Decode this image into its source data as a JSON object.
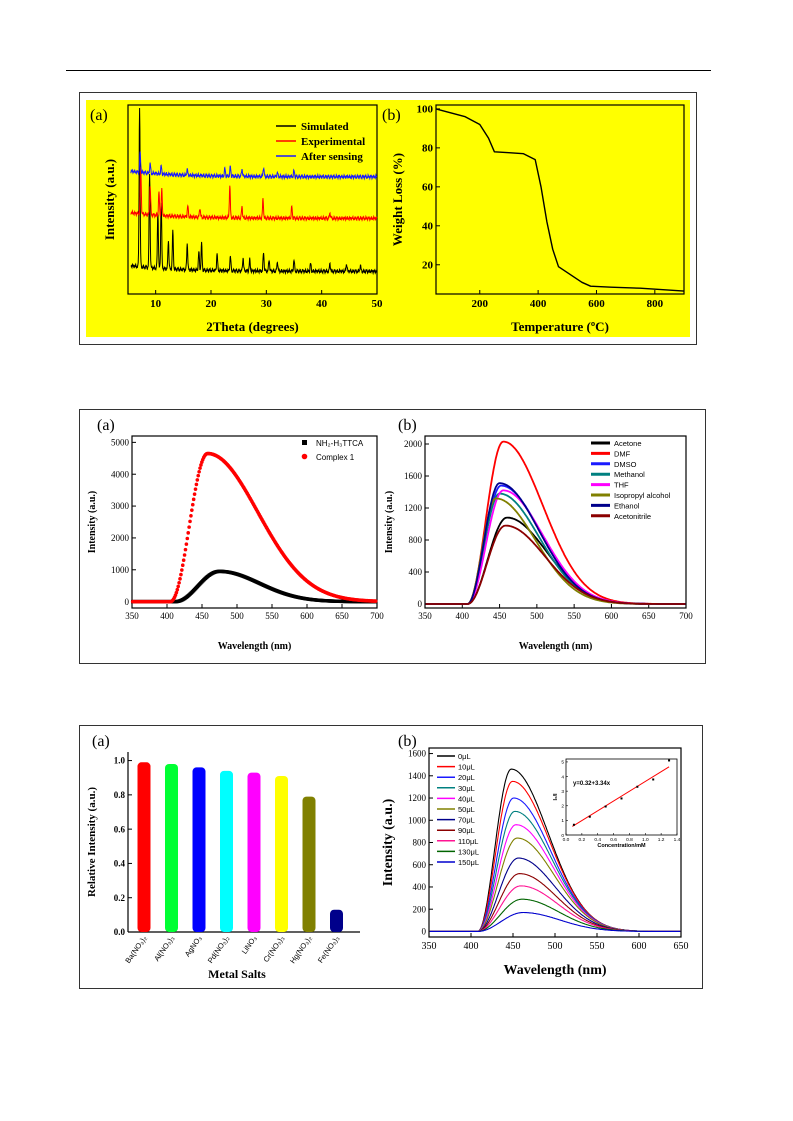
{
  "figure1": {
    "a": {
      "label": "(a)",
      "xlabel": "2Theta (degrees)",
      "ylabel": "Intensity (a.u.)",
      "xticks": [
        "10",
        "20",
        "30",
        "40",
        "50"
      ],
      "legend": [
        "Simulated",
        "Experimental",
        "After sensing"
      ]
    },
    "b": {
      "label": "(b)",
      "xlabel": "Temperature (ºC)",
      "ylabel": "Weight Loss (%)",
      "xticks": [
        "200",
        "400",
        "600",
        "800"
      ],
      "yticks": [
        "20",
        "40",
        "60",
        "80",
        "100"
      ]
    }
  },
  "figure2": {
    "a": {
      "label": "(a)",
      "xlabel": "Wavelength (nm)",
      "ylabel": "Intensity (a.u.)",
      "xticks": [
        "350",
        "400",
        "450",
        "500",
        "550",
        "600",
        "650",
        "700"
      ],
      "yticks": [
        "0",
        "1000",
        "2000",
        "3000",
        "4000",
        "5000"
      ],
      "legend": [
        "NH₂-H₃TTCA",
        "Complex 1"
      ]
    },
    "b": {
      "label": "(b)",
      "xlabel": "Wavelength (nm)",
      "ylabel": "Intensity (a.u.)",
      "xticks": [
        "350",
        "400",
        "450",
        "500",
        "550",
        "600",
        "650",
        "700"
      ],
      "yticks": [
        "0",
        "400",
        "800",
        "1200",
        "1600",
        "2000"
      ],
      "legend": [
        "Acetone",
        "DMF",
        "DMSO",
        "Methanol",
        "THF",
        "Isopropyl alcohol",
        "Ethanol",
        "Acetonitrile"
      ]
    }
  },
  "figure3": {
    "a": {
      "label": "(a)",
      "xlabel": "Metal Salts",
      "ylabel": "Relative Intensity (a.u.)",
      "yticks": [
        "0.0",
        "0.2",
        "0.4",
        "0.6",
        "0.8",
        "1.0"
      ],
      "categories": [
        "Ba(NO₃)₂",
        "Al(NO₃)₃",
        "AgNO₃",
        "Pd(NO₃)₂",
        "LiNO₃",
        "Cr(NO₃)₃",
        "Hg(NO₃)₂",
        "Fe(NO₃)₃"
      ]
    },
    "b": {
      "label": "(b)",
      "xlabel": "Wavelength (nm)",
      "ylabel": "Intensity (a.u.)",
      "xticks": [
        "350",
        "400",
        "450",
        "500",
        "550",
        "600",
        "650"
      ],
      "yticks": [
        "0",
        "200",
        "400",
        "600",
        "800",
        "1000",
        "1200",
        "1400",
        "1600"
      ],
      "legend": [
        "0μL",
        "10μL",
        "20μL",
        "30μL",
        "40μL",
        "50μL",
        "70μL",
        "90μL",
        "110μL",
        "130μL",
        "150μL"
      ],
      "inset": {
        "xlabel": "Concentration/mM",
        "ylabel": "I₀/I",
        "equation": "y=0.32+3.34x",
        "xticks": [
          "0.0",
          "0.2",
          "0.4",
          "0.6",
          "0.8",
          "1.0",
          "1.2",
          "1.4"
        ],
        "yticks": [
          "0",
          "1",
          "2",
          "3",
          "4",
          "5"
        ]
      }
    }
  },
  "colors": {
    "yellow_bg": "#ffff00",
    "black": "#000000",
    "red": "#ff0000",
    "blue": "#1a1aff"
  },
  "chart_data": [
    {
      "type": "line",
      "panel": "fig1a",
      "xlabel": "2Theta (degrees)",
      "ylabel": "Intensity (a.u.)",
      "xlim": [
        5,
        50
      ],
      "series": [
        {
          "name": "Simulated",
          "color": "#000000",
          "baseline": 0.12,
          "peaks": [
            [
              7.1,
              0.85
            ],
            [
              8.9,
              0.5
            ],
            [
              10.4,
              0.3
            ],
            [
              11.0,
              0.35
            ],
            [
              12.3,
              0.15
            ],
            [
              13.1,
              0.2
            ],
            [
              15.7,
              0.14
            ],
            [
              17.8,
              0.1
            ],
            [
              18.3,
              0.14
            ],
            [
              21.1,
              0.09
            ],
            [
              23.5,
              0.08
            ],
            [
              25.8,
              0.07
            ],
            [
              27.0,
              0.06
            ],
            [
              29.5,
              0.1
            ],
            [
              30.5,
              0.06
            ],
            [
              32.0,
              0.05
            ],
            [
              35.0,
              0.06
            ],
            [
              38.0,
              0.04
            ],
            [
              41.5,
              0.04
            ],
            [
              44.5,
              0.04
            ],
            [
              47.0,
              0.03
            ]
          ]
        },
        {
          "name": "Experimental",
          "color": "#ff0000",
          "baseline": 0.4,
          "peaks": [
            [
              7.3,
              0.25
            ],
            [
              9.0,
              0.15
            ],
            [
              10.6,
              0.12
            ],
            [
              11.1,
              0.14
            ],
            [
              15.8,
              0.06
            ],
            [
              18.0,
              0.05
            ],
            [
              23.4,
              0.17
            ],
            [
              25.6,
              0.06
            ],
            [
              29.4,
              0.1
            ],
            [
              34.6,
              0.06
            ],
            [
              41.5,
              0.03
            ]
          ]
        },
        {
          "name": "After sensing",
          "color": "#1a1aff",
          "baseline": 0.62,
          "peaks": [
            [
              7.2,
              0.1
            ],
            [
              9.0,
              0.05
            ],
            [
              11.0,
              0.04
            ],
            [
              15.7,
              0.03
            ],
            [
              22.5,
              0.04
            ],
            [
              23.5,
              0.05
            ],
            [
              25.6,
              0.04
            ],
            [
              29.5,
              0.05
            ],
            [
              32.0,
              0.02
            ],
            [
              35.0,
              0.03
            ]
          ]
        }
      ]
    },
    {
      "type": "line",
      "panel": "fig1b",
      "xlabel": "Temperature (ºC)",
      "ylabel": "Weight Loss (%)",
      "xlim": [
        50,
        900
      ],
      "ylim": [
        5,
        102
      ],
      "series": [
        {
          "name": "",
          "color": "#000000",
          "x": [
            50,
            100,
            150,
            200,
            230,
            250,
            300,
            350,
            390,
            410,
            430,
            450,
            470,
            500,
            550,
            580,
            650,
            750,
            900
          ],
          "y": [
            100,
            98,
            96,
            92,
            85,
            78,
            77.5,
            77,
            74,
            60,
            42,
            28,
            19,
            16,
            11,
            9,
            8.5,
            8,
            6.5
          ]
        }
      ]
    },
    {
      "type": "line",
      "panel": "fig2a",
      "xlabel": "Wavelength (nm)",
      "ylabel": "Intensity (a.u.)",
      "xlim": [
        350,
        700
      ],
      "ylim": [
        -200,
        5200
      ],
      "series": [
        {
          "name": "NH₂-H₃TTCA",
          "color": "#000000",
          "marker": "square",
          "peak_x": 475,
          "peak_y": 950,
          "onset": 412,
          "end": 620
        },
        {
          "name": "Complex 1",
          "color": "#ff0000",
          "marker": "circle",
          "peak_x": 458,
          "peak_y": 4650,
          "onset": 405,
          "end": 640
        }
      ]
    },
    {
      "type": "line",
      "panel": "fig2b",
      "xlabel": "Wavelength (nm)",
      "ylabel": "Intensity (a.u.)",
      "xlim": [
        350,
        700
      ],
      "ylim": [
        -50,
        2100
      ],
      "series": [
        {
          "name": "Acetone",
          "color": "#000000",
          "peak_x": 460,
          "peak_y": 1080
        },
        {
          "name": "DMF",
          "color": "#ff0000",
          "peak_x": 455,
          "peak_y": 2030
        },
        {
          "name": "DMSO",
          "color": "#1a1aff",
          "peak_x": 452,
          "peak_y": 1480
        },
        {
          "name": "Methanol",
          "color": "#008080",
          "peak_x": 450,
          "peak_y": 1380
        },
        {
          "name": "THF",
          "color": "#ff00ff",
          "peak_x": 455,
          "peak_y": 1420
        },
        {
          "name": "Isopropyl alcohol",
          "color": "#808000",
          "peak_x": 445,
          "peak_y": 1320
        },
        {
          "name": "Ethanol",
          "color": "#00008b",
          "peak_x": 450,
          "peak_y": 1510
        },
        {
          "name": "Acetonitrile",
          "color": "#8b0000",
          "peak_x": 458,
          "peak_y": 980
        }
      ]
    },
    {
      "type": "bar",
      "panel": "fig3a",
      "xlabel": "Metal Salts",
      "ylabel": "Relative Intensity (a.u.)",
      "ylim": [
        0,
        1.05
      ],
      "categories": [
        "Ba(NO₃)₂",
        "Al(NO₃)₃",
        "AgNO₃",
        "Pd(NO₃)₂",
        "LiNO₃",
        "Cr(NO₃)₃",
        "Hg(NO₃)₂",
        "Fe(NO₃)₃"
      ],
      "values": [
        0.99,
        0.98,
        0.96,
        0.94,
        0.93,
        0.91,
        0.79,
        0.13
      ],
      "colors": [
        "#ff0000",
        "#00ff33",
        "#0000ff",
        "#00ffff",
        "#ff00ff",
        "#ffff00",
        "#808000",
        "#00008b"
      ]
    },
    {
      "type": "line",
      "panel": "fig3b",
      "xlabel": "Wavelength (nm)",
      "ylabel": "Intensity (a.u.)",
      "xlim": [
        350,
        650
      ],
      "ylim": [
        -50,
        1650
      ],
      "series": [
        {
          "name": "0μL",
          "color": "#000000",
          "peak_y": 1460
        },
        {
          "name": "10μL",
          "color": "#ff0000",
          "peak_y": 1350
        },
        {
          "name": "20μL",
          "color": "#1a1aff",
          "peak_y": 1200
        },
        {
          "name": "30μL",
          "color": "#008080",
          "peak_y": 1080
        },
        {
          "name": "40μL",
          "color": "#ff00ff",
          "peak_y": 960
        },
        {
          "name": "50μL",
          "color": "#808000",
          "peak_y": 840
        },
        {
          "name": "70μL",
          "color": "#00008b",
          "peak_y": 660
        },
        {
          "name": "90μL",
          "color": "#8b0000",
          "peak_y": 520
        },
        {
          "name": "110μL",
          "color": "#ff1493",
          "peak_y": 410
        },
        {
          "name": "130μL",
          "color": "#006400",
          "peak_y": 290
        },
        {
          "name": "150μL",
          "color": "#0000cd",
          "peak_y": 170
        }
      ]
    },
    {
      "type": "scatter",
      "panel": "fig3b-inset",
      "xlabel": "Concentration/mM",
      "ylabel": "I₀/I",
      "xlim": [
        0,
        1.4
      ],
      "ylim": [
        0,
        5.2
      ],
      "x": [
        0.1,
        0.3,
        0.5,
        0.7,
        0.9,
        1.1,
        1.3
      ],
      "y": [
        0.7,
        1.25,
        1.95,
        2.5,
        3.3,
        3.8,
        5.1
      ],
      "fit": {
        "intercept": 0.32,
        "slope": 3.34,
        "color": "#ff0000"
      }
    }
  ]
}
